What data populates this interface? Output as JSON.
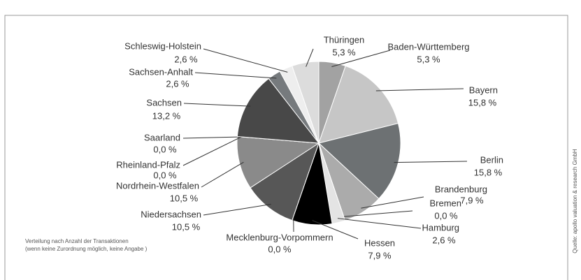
{
  "chart_data": {
    "type": "pie",
    "categories": [
      "Baden-Württemberg",
      "Bayern",
      "Berlin",
      "Brandenburg",
      "Bremen",
      "Hamburg",
      "Hessen",
      "Mecklenburg-Vorpommern",
      "Niedersachsen",
      "Nordrhein-Westfalen",
      "Rheinland-Pfalz",
      "Saarland",
      "Sachsen",
      "Sachsen-Anhalt",
      "Schleswig-Holstein",
      "Thüringen"
    ],
    "values": [
      5.3,
      15.8,
      15.8,
      7.9,
      0.0,
      2.6,
      7.9,
      0.0,
      10.5,
      10.5,
      0.0,
      0.0,
      13.2,
      2.6,
      2.6,
      5.3
    ],
    "value_labels": [
      "5,3 %",
      "15,8 %",
      "15,8 %",
      "7,9 %",
      "0,0 %",
      "2,6 %",
      "7,9 %",
      "0,0 %",
      "10,5 %",
      "10,5 %",
      "0,0 %",
      "0,0 %",
      "13,2 %",
      "2,6 %",
      "2,6 %",
      "5,3 %"
    ],
    "colors": [
      "#a2a2a2",
      "#c6c6c6",
      "#6d7173",
      "#ababab",
      "#bbbbbb",
      "#e4e4e4",
      "#000000",
      "#444444",
      "#575757",
      "#8a8a8a",
      "#777777",
      "#666666",
      "#484848",
      "#767a7d",
      "#eeeeee",
      "#dcdcdc"
    ],
    "note": [
      "Verteilung nach Anzahl der Transaktionen",
      "(wenn keine Zurordnung möglich, keine Angabe )"
    ],
    "source": "Quelle: apollo valuation & research GmbH"
  }
}
